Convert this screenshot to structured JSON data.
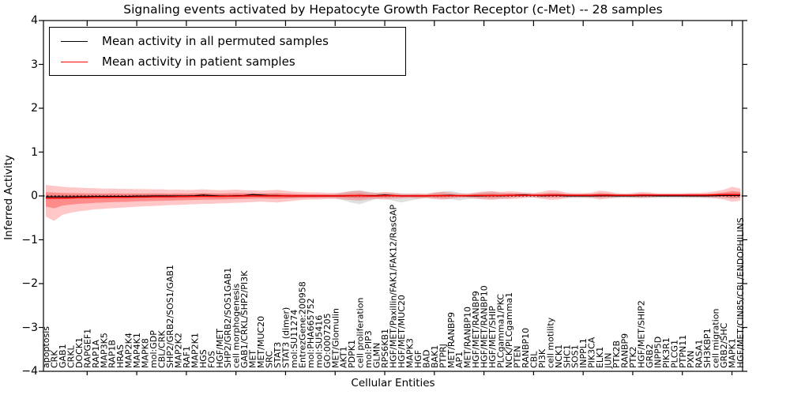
{
  "chart_data": {
    "type": "line",
    "title": "Signaling events activated by Hepatocyte Growth Factor Receptor (c-Met) -- 28 samples",
    "xlabel": "Cellular Entities",
    "ylabel": "Inferred Activity",
    "ylim": [
      -4,
      4
    ],
    "yticks": [
      -4,
      -3,
      -2,
      -1,
      0,
      1,
      2,
      3,
      4
    ],
    "grid": false,
    "legend_position": "upper left",
    "zero_line": {
      "style": "dotted",
      "color": "#000000",
      "y": 0
    },
    "categories": [
      "apoptosis",
      "CRK",
      "GAB1",
      "CRKL",
      "DOCK1",
      "RAPGEF1",
      "RAP1A",
      "MAP3K5",
      "RAP1B",
      "HRAS",
      "MAP2K4",
      "MAP4K1",
      "MAPK8",
      "mol:GDP",
      "CBL/CRK",
      "SHP2/GRB2/SOS1/GAB1",
      "MAP2K2",
      "RAF1",
      "MAP2K1",
      "HGS",
      "FOS",
      "HGF/MET",
      "SHP2/GRB2/SOS1GAB1",
      "cell morphogenesis",
      "GAB1/CRKL/SHP2/PI3K",
      "MET",
      "MET/MUC20",
      "SRC",
      "STAT3",
      "STAT3 (dimer)",
      "mol:SU11274",
      "EntrezGene:200958",
      "mol:PHA665752",
      "mol:SU5416",
      "GO:0007205",
      "MET/Glomulin",
      "AKT1",
      "PDPK1",
      "cell proliferation",
      "mol:PIP3",
      "GLMN",
      "RPS6KB1",
      "HGF/MET/Paxillin/FAK1/FAK12/RasGAP",
      "HGF/MET/MUC20",
      "MAPK3",
      "HGF",
      "BAD",
      "BAK1",
      "PTPRJ",
      "MET/RANBP9",
      "AP1",
      "MET/RANBP10",
      "HGF/MET/RANBP9",
      "HGF/MET/RANBP10",
      "HGF/MET/SHIP",
      "PLCgamma1/PKC",
      "NCK/PLCgamma1",
      "PTEN",
      "RANBP10",
      "CBL",
      "PI3K",
      "cell motility",
      "NCK1",
      "SHC1",
      "SOS1",
      "INPPL1",
      "PIK3CA",
      "ELK1",
      "JUN",
      "PTK2B",
      "RANBP9",
      "PTK2",
      "HGF/MET/SHIP2",
      "GRB2",
      "INPP5D",
      "PIK3R1",
      "PLCG1",
      "PTPN11",
      "PXN",
      "RASA1",
      "SH3KBP1",
      "cell migration",
      "GRB2/SHC",
      "MAPK1",
      "HGF/MET/CIN85/CBL/ENDOPHILINS"
    ],
    "series": {
      "permuted_mean": {
        "label": "Mean activity in all permuted samples",
        "color": "#000000",
        "values": [
          -0.02,
          -0.02,
          -0.02,
          -0.02,
          -0.015,
          -0.015,
          -0.01,
          -0.01,
          -0.01,
          -0.01,
          -0.01,
          -0.005,
          -0.005,
          0,
          0,
          0,
          0,
          0,
          0.005,
          0.02,
          0.01,
          0,
          0,
          0.005,
          0.01,
          0.03,
          0.02,
          0.01,
          0.01,
          0,
          0,
          0,
          0,
          0,
          0,
          0,
          0,
          0.005,
          0.01,
          0.005,
          0.01,
          0.02,
          0.01,
          0,
          0,
          0,
          0,
          0.005,
          0.01,
          0.015,
          0.005,
          0,
          0,
          0.005,
          0.01,
          0.005,
          0.01,
          0.02,
          0.025,
          0.015,
          0.005,
          0.01,
          0.01,
          0,
          0,
          0,
          0,
          0.005,
          0.005,
          0,
          0,
          0,
          0.005,
          0.005,
          0,
          0,
          0,
          0,
          0,
          0,
          0,
          0.005,
          0.01,
          0.01,
          0.01
        ]
      },
      "patient_mean": {
        "label": "Mean activity in patient samples",
        "color": "#ff0000",
        "values": [
          -0.05,
          -0.05,
          -0.05,
          -0.045,
          -0.04,
          -0.04,
          -0.035,
          -0.035,
          -0.03,
          -0.03,
          -0.03,
          -0.025,
          -0.025,
          -0.02,
          -0.02,
          -0.02,
          -0.015,
          -0.015,
          -0.01,
          -0.01,
          -0.01,
          -0.01,
          -0.005,
          -0.005,
          0,
          0,
          0,
          0,
          0,
          0,
          0,
          0,
          0,
          0,
          0,
          0,
          0,
          0.005,
          0.005,
          0,
          0,
          0.005,
          0.005,
          0,
          0,
          0,
          0,
          0.005,
          0.005,
          0.005,
          0.005,
          0.005,
          0.01,
          0.01,
          0.01,
          0.01,
          0.015,
          0.015,
          0.015,
          0.015,
          0.015,
          0.02,
          0.02,
          0.015,
          0.015,
          0.015,
          0.015,
          0.02,
          0.02,
          0.015,
          0.015,
          0.015,
          0.02,
          0.02,
          0.02,
          0.02,
          0.02,
          0.02,
          0.02,
          0.02,
          0.02,
          0.025,
          0.03,
          0.03,
          0.03
        ]
      }
    },
    "bands": {
      "permuted_range": {
        "color": "#999999",
        "opacity": 0.3,
        "hw_hi": [
          0.04,
          0.04,
          0.04,
          0.04,
          0.04,
          0.04,
          0.04,
          0.04,
          0.04,
          0.04,
          0.04,
          0.04,
          0.04,
          0.04,
          0.04,
          0.04,
          0.04,
          0.04,
          0.04,
          0.04,
          0.04,
          0.04,
          0.04,
          0.04,
          0.04,
          0.04,
          0.04,
          0.04,
          0.04,
          0.04,
          0.04,
          0.04,
          0.04,
          0.04,
          0.04,
          0.04,
          0.08,
          0.11,
          0.12,
          0.09,
          0.06,
          0.05,
          0.06,
          0.06,
          0.05,
          0.04,
          0.04,
          0.06,
          0.09,
          0.1,
          0.07,
          0.05,
          0.06,
          0.08,
          0.09,
          0.07,
          0.05,
          0.04,
          0.04,
          0.04,
          0.04,
          0.04,
          0.04,
          0.04,
          0.04,
          0.04,
          0.04,
          0.04,
          0.04,
          0.04,
          0.04,
          0.04,
          0.04,
          0.04,
          0.04,
          0.04,
          0.04,
          0.04,
          0.04,
          0.04,
          0.04,
          0.04,
          0.05,
          0.06,
          0.05
        ],
        "hw_lo": [
          0.05,
          0.05,
          0.05,
          0.05,
          0.05,
          0.05,
          0.05,
          0.05,
          0.05,
          0.05,
          0.05,
          0.05,
          0.05,
          0.05,
          0.05,
          0.05,
          0.05,
          0.05,
          0.05,
          0.05,
          0.05,
          0.05,
          0.05,
          0.05,
          0.05,
          0.05,
          0.05,
          0.05,
          0.05,
          0.05,
          0.05,
          0.05,
          0.05,
          0.05,
          0.05,
          0.05,
          0.1,
          0.16,
          0.2,
          0.13,
          0.08,
          0.08,
          0.12,
          0.15,
          0.11,
          0.07,
          0.05,
          0.06,
          0.08,
          0.09,
          0.11,
          0.07,
          0.06,
          0.07,
          0.08,
          0.07,
          0.06,
          0.05,
          0.05,
          0.05,
          0.05,
          0.05,
          0.05,
          0.05,
          0.05,
          0.05,
          0.05,
          0.05,
          0.05,
          0.05,
          0.05,
          0.05,
          0.05,
          0.05,
          0.05,
          0.05,
          0.05,
          0.05,
          0.05,
          0.05,
          0.05,
          0.05,
          0.06,
          0.07,
          0.06
        ]
      },
      "patient_range": {
        "color": "#ff0000",
        "opacity": 0.22,
        "inner_opacity": 0.3,
        "inner_scale": 0.45,
        "hw_hi": [
          0.3,
          0.28,
          0.26,
          0.24,
          0.23,
          0.22,
          0.21,
          0.2,
          0.2,
          0.19,
          0.19,
          0.18,
          0.18,
          0.17,
          0.17,
          0.16,
          0.16,
          0.15,
          0.15,
          0.16,
          0.15,
          0.14,
          0.14,
          0.15,
          0.13,
          0.13,
          0.12,
          0.13,
          0.14,
          0.12,
          0.1,
          0.09,
          0.08,
          0.08,
          0.07,
          0.07,
          0.08,
          0.1,
          0.11,
          0.08,
          0.07,
          0.09,
          0.07,
          0.05,
          0.05,
          0.06,
          0.05,
          0.08,
          0.09,
          0.07,
          0.05,
          0.05,
          0.07,
          0.09,
          0.1,
          0.08,
          0.09,
          0.08,
          0.06,
          0.05,
          0.08,
          0.11,
          0.1,
          0.06,
          0.05,
          0.05,
          0.06,
          0.1,
          0.08,
          0.05,
          0.04,
          0.05,
          0.07,
          0.06,
          0.04,
          0.04,
          0.04,
          0.04,
          0.05,
          0.05,
          0.06,
          0.08,
          0.11,
          0.18,
          0.14
        ],
        "hw_lo": [
          0.42,
          0.52,
          0.38,
          0.34,
          0.31,
          0.29,
          0.27,
          0.26,
          0.25,
          0.24,
          0.23,
          0.22,
          0.21,
          0.21,
          0.2,
          0.19,
          0.19,
          0.18,
          0.18,
          0.17,
          0.17,
          0.16,
          0.16,
          0.15,
          0.15,
          0.14,
          0.13,
          0.14,
          0.15,
          0.13,
          0.11,
          0.09,
          0.08,
          0.08,
          0.07,
          0.07,
          0.08,
          0.1,
          0.11,
          0.08,
          0.07,
          0.09,
          0.07,
          0.06,
          0.05,
          0.06,
          0.05,
          0.08,
          0.09,
          0.07,
          0.05,
          0.05,
          0.07,
          0.09,
          0.1,
          0.08,
          0.09,
          0.08,
          0.06,
          0.05,
          0.08,
          0.11,
          0.1,
          0.06,
          0.05,
          0.05,
          0.06,
          0.1,
          0.08,
          0.05,
          0.04,
          0.05,
          0.07,
          0.06,
          0.04,
          0.04,
          0.04,
          0.04,
          0.05,
          0.05,
          0.06,
          0.08,
          0.11,
          0.16,
          0.14
        ]
      }
    }
  }
}
